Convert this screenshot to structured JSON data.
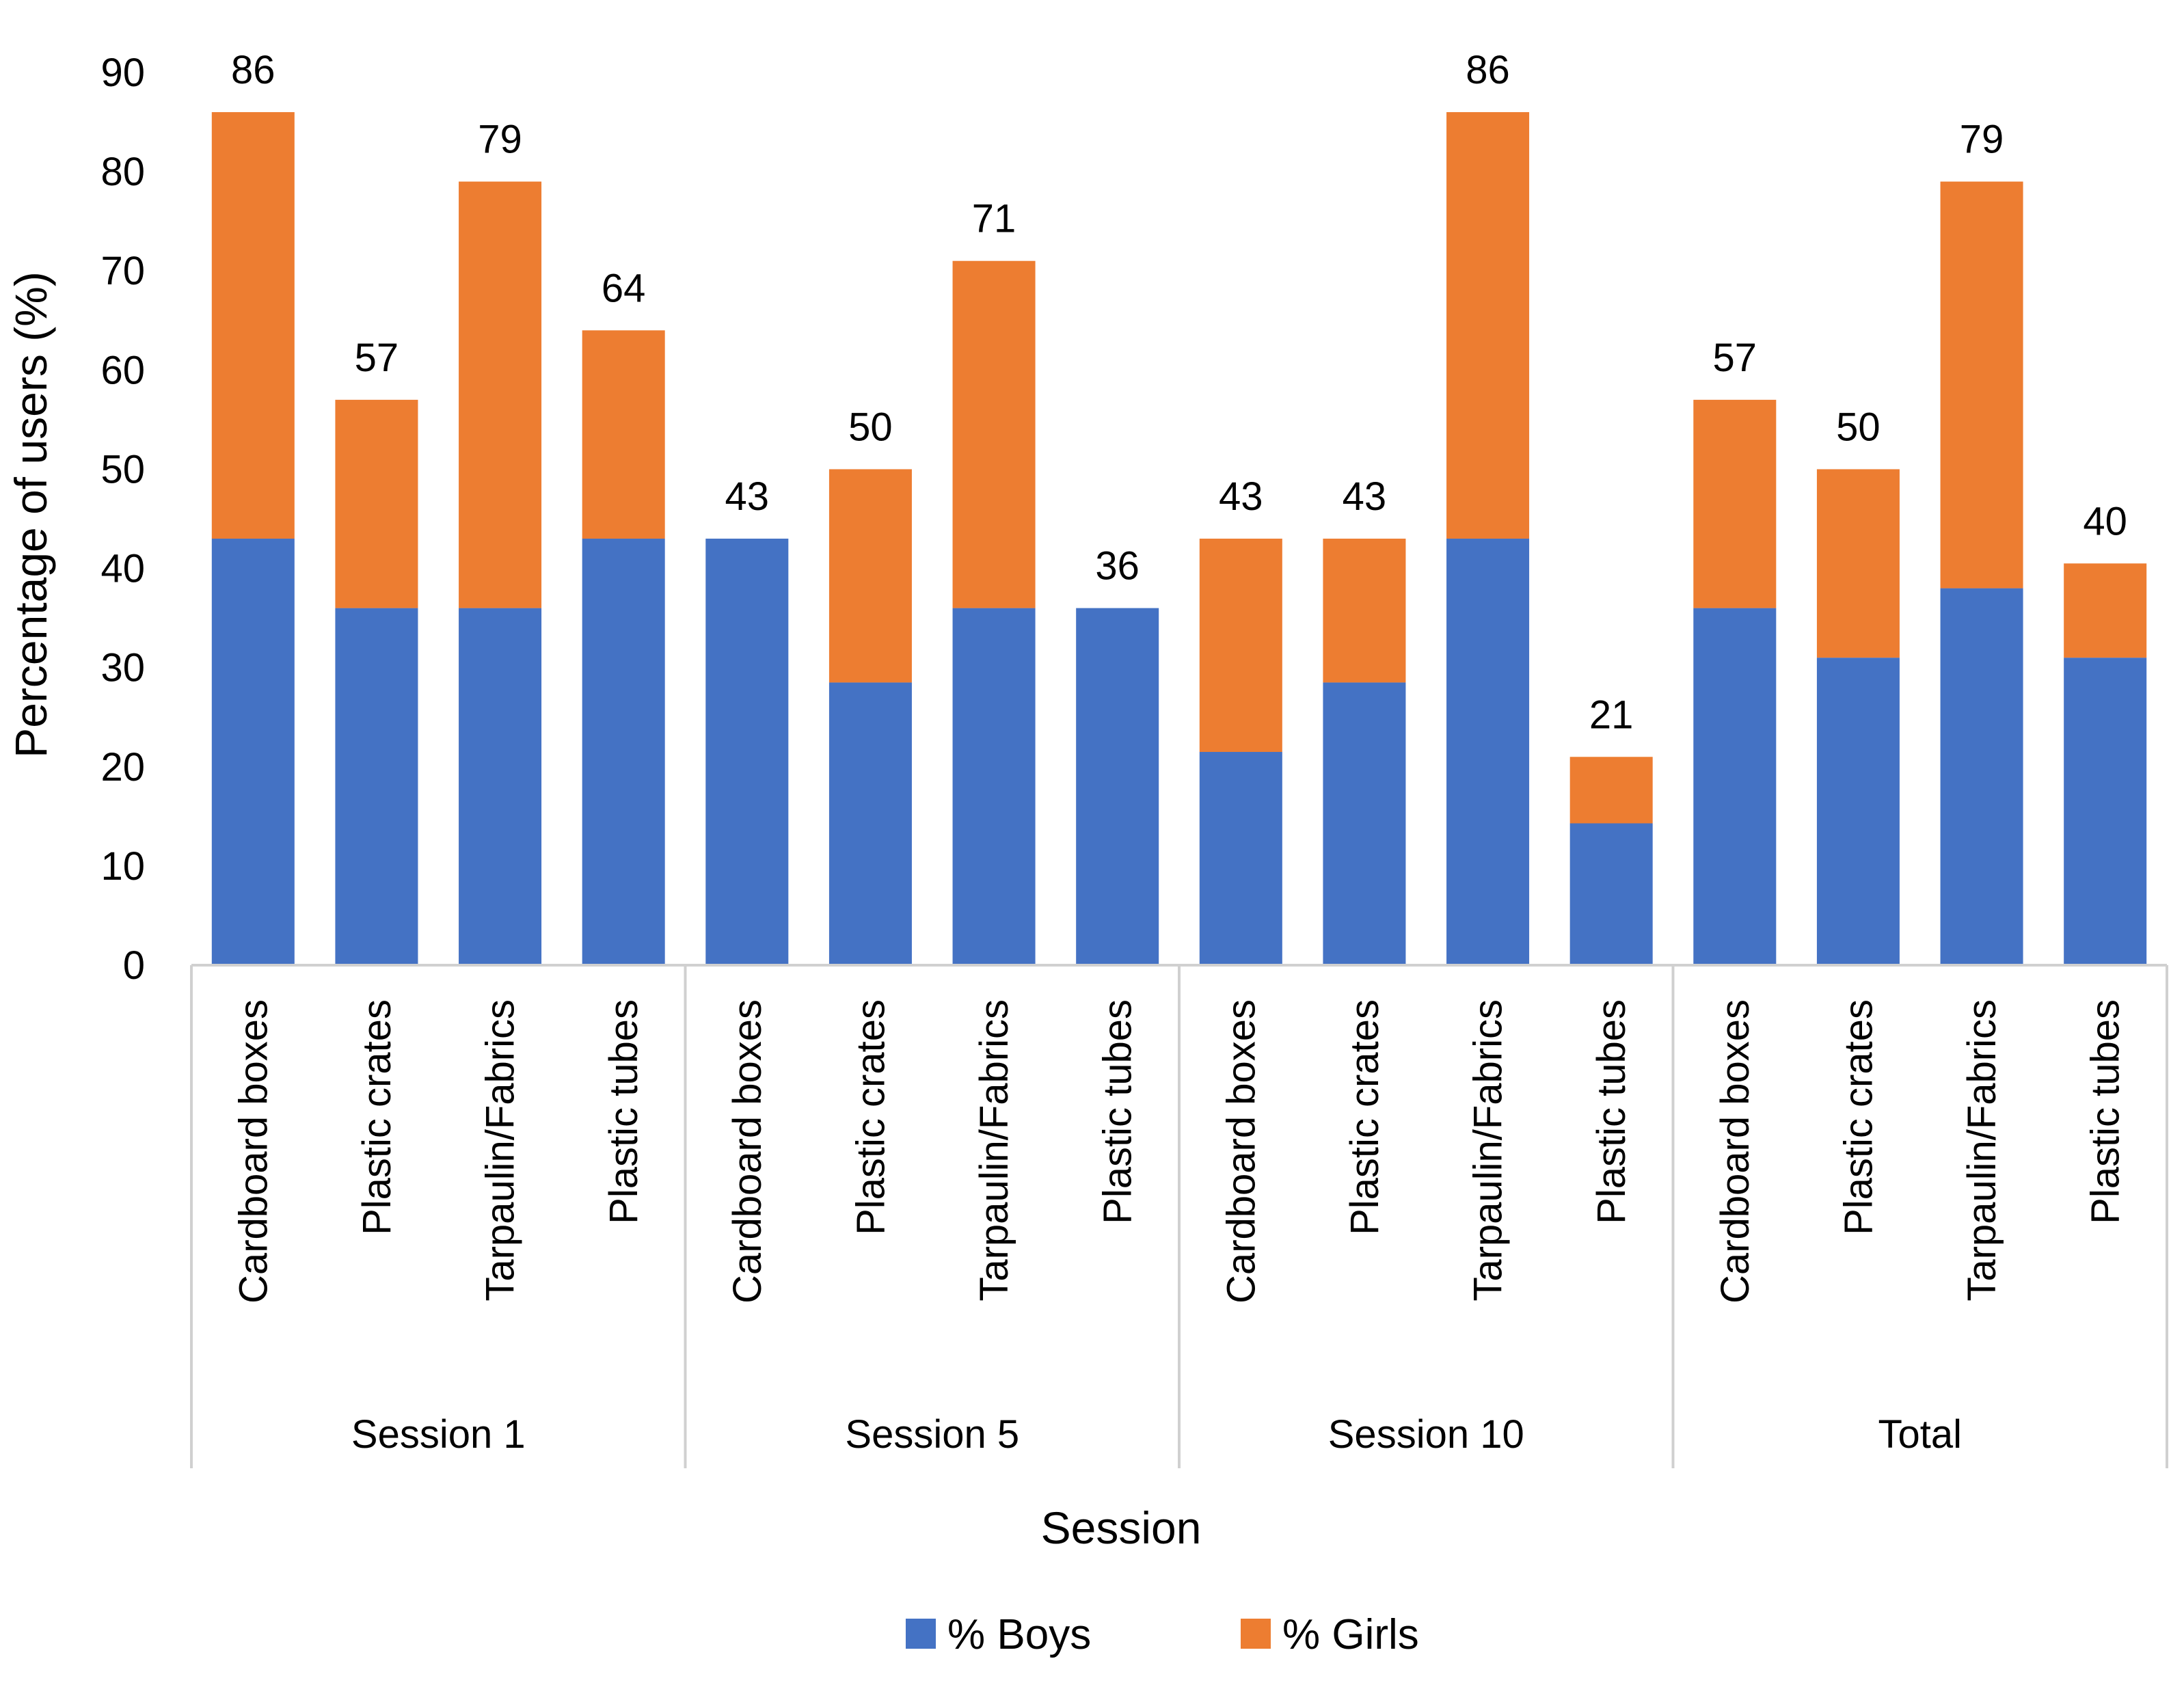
{
  "chart_data": {
    "type": "bar",
    "stacked": true,
    "title": "",
    "xlabel": "Session",
    "ylabel": "Percentage of users (%)",
    "ylim": [
      0,
      90
    ],
    "ytick_step": 10,
    "grid": false,
    "legend_position": "bottom",
    "groups": [
      {
        "name": "Session 1",
        "categories": [
          "Cardboard boxes",
          "Plastic crates",
          "Tarpaulin/Fabrics",
          "Plastic tubes"
        ]
      },
      {
        "name": "Session 5",
        "categories": [
          "Cardboard boxes",
          "Plastic crates",
          "Tarpaulin/Fabrics",
          "Plastic tubes"
        ]
      },
      {
        "name": "Session 10",
        "categories": [
          "Cardboard boxes",
          "Plastic crates",
          "Tarpaulin/Fabrics",
          "Plastic tubes"
        ]
      },
      {
        "name": "Total",
        "categories": [
          "Cardboard boxes",
          "Plastic crates",
          "Tarpaulin/Fabrics",
          "Plastic tubes"
        ]
      }
    ],
    "series": [
      {
        "name": "% Boys",
        "color": "#4472C4",
        "values": [
          43,
          36,
          36,
          43,
          43,
          28.5,
          36,
          36,
          21.5,
          28.5,
          43,
          14.3,
          36,
          31,
          38,
          31
        ]
      },
      {
        "name": "% Girls",
        "color": "#ED7D31",
        "values": [
          43,
          21,
          43,
          21,
          0,
          21.5,
          35,
          0,
          21.5,
          14.5,
          43,
          6.7,
          21,
          19,
          41,
          9.5
        ]
      }
    ],
    "totals": [
      "86",
      "57",
      "79",
      "64",
      "43",
      "50",
      "71",
      "36",
      "43",
      "43",
      "86",
      "21",
      "57",
      "50",
      "79",
      "40"
    ]
  }
}
